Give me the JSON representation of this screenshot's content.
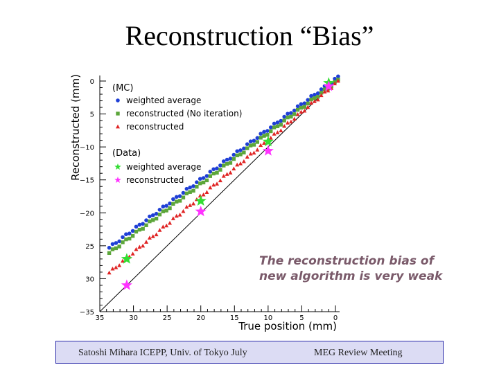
{
  "slide": {
    "title": "Reconstruction “Bias”",
    "footer_left": "Satoshi Mihara ICEPP, Univ. of Tokyo July",
    "footer_right": "MEG Review Meeting"
  },
  "colors": {
    "mc_weighted": "#1f3fd6",
    "mc_reco_noiter": "#5ca63a",
    "mc_reco": "#e02424",
    "data_weighted": "#33dd33",
    "data_reco": "#ff33ff",
    "annotation": "#7a5a6a"
  },
  "chart_data": {
    "type": "scatter",
    "xlabel": "True position (mm)",
    "ylabel": "Reconstructed (mm)",
    "xlim": [
      -35,
      0
    ],
    "ylim": [
      -35,
      0
    ],
    "x_ticks": [
      -35,
      -30,
      -25,
      -20,
      -15,
      -10,
      -5,
      0
    ],
    "x_tick_labels": [
      "35",
      "30",
      "25",
      "20",
      "15",
      "10",
      "5",
      "0"
    ],
    "y_ticks": [
      0,
      -5,
      -10,
      -15,
      -20,
      -25,
      -30,
      -35
    ],
    "y_tick_labels": [
      "0",
      "5",
      "−10",
      "−15",
      "−20",
      "25",
      "30",
      "−35"
    ],
    "legend": {
      "placement": "top-left",
      "mc_header": "(MC)",
      "data_header": "(Data)"
    },
    "annotation": [
      "The reconstruction bias of",
      "new algorithm is very weak !!"
    ],
    "series": [
      {
        "name": "weighted average",
        "group": "MC",
        "marker": "circle",
        "color": "#1f3fd6",
        "bias_start": 8.3,
        "bias_end": 0.2
      },
      {
        "name": "reconstructed (No iteration)",
        "group": "MC",
        "marker": "square",
        "color": "#5ca63a",
        "bias_start": 7.5,
        "bias_end": -0.3
      },
      {
        "name": "reconstructed",
        "group": "MC",
        "marker": "triangle",
        "color": "#e02424",
        "bias_start": 4.5,
        "bias_end": -0.5
      },
      {
        "name": "weighted average",
        "group": "Data",
        "marker": "star",
        "color": "#33dd33",
        "points": [
          {
            "x": -31,
            "y": -27
          },
          {
            "x": -20,
            "y": -18.2
          },
          {
            "x": -10,
            "y": -9.2
          },
          {
            "x": -1,
            "y": -0.3
          }
        ]
      },
      {
        "name": "reconstructed",
        "group": "Data",
        "marker": "star",
        "color": "#ff33ff",
        "points": [
          {
            "x": -31,
            "y": -31
          },
          {
            "x": -20,
            "y": -19.8
          },
          {
            "x": -10,
            "y": -10.6
          },
          {
            "x": -1,
            "y": -0.8
          }
        ]
      }
    ]
  }
}
